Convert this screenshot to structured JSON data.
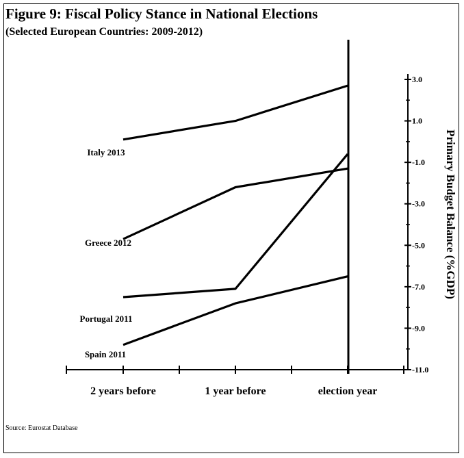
{
  "title": "Figure 9: Fiscal Policy Stance in National Elections",
  "subtitle": "(Selected European Countries: 2009-2012)",
  "source": "Source: Eurostat Database",
  "chart_data": {
    "type": "line",
    "title": "Figure 9: Fiscal Policy Stance in National Elections",
    "subtitle": "(Selected European Countries: 2009-2012)",
    "categories": [
      "2 years before",
      "1 year before",
      "election year"
    ],
    "ylabel": "Primary Budget Balance (%GDP)",
    "ylim": [
      -11.0,
      3.0
    ],
    "yticks": [
      "3.0",
      "1.0",
      "-1.0",
      "-3.0",
      "-5.0",
      "-7.0",
      "-9.0",
      "-11.0"
    ],
    "ytick_values": [
      3,
      1,
      -1,
      -3,
      -5,
      -7,
      -9,
      -11
    ],
    "legend": "series labels placed left of each line",
    "grid": false,
    "series": [
      {
        "name": "Italy 2013",
        "values": [
          0.1,
          1.0,
          2.7
        ]
      },
      {
        "name": "Greece 2012",
        "values": [
          -4.7,
          -2.2,
          -1.3
        ]
      },
      {
        "name": "Portugal 2011",
        "values": [
          -7.5,
          -7.1,
          -0.6
        ]
      },
      {
        "name": "Spain 2011",
        "values": [
          -9.8,
          -7.8,
          -6.5
        ]
      }
    ],
    "colors": {
      "line": "#000000",
      "axis": "#000000"
    }
  }
}
